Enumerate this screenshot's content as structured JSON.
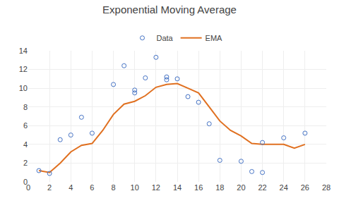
{
  "chart_data": {
    "type": "scatter",
    "title": "Exponential Moving Average",
    "series": [
      {
        "name": "Data",
        "type": "scatter",
        "marker": "circle-open",
        "color": "#4472c4",
        "x": [
          1,
          2,
          3,
          4,
          5,
          6,
          8,
          9,
          10,
          11,
          12,
          13,
          14,
          15,
          16,
          17,
          18,
          20,
          21,
          22,
          24,
          26,
          10,
          13,
          22
        ],
        "values": [
          1.2,
          0.9,
          4.5,
          5.0,
          6.9,
          5.2,
          10.4,
          12.4,
          9.8,
          11.1,
          13.3,
          11.2,
          11.0,
          9.1,
          8.5,
          6.2,
          2.3,
          2.2,
          1.1,
          4.2,
          4.7,
          5.2,
          9.5,
          10.9,
          1.0
        ]
      },
      {
        "name": "EMA",
        "type": "line",
        "line_style": "solid",
        "color": "#e07020",
        "x": [
          1,
          2,
          3,
          4,
          5,
          6,
          7,
          8,
          9,
          10,
          11,
          12,
          13,
          14,
          15,
          16,
          17,
          18,
          19,
          20,
          21,
          22,
          23,
          24,
          25,
          26
        ],
        "values": [
          1.2,
          1.0,
          2.0,
          3.2,
          3.9,
          4.1,
          5.5,
          7.2,
          8.3,
          8.6,
          9.2,
          10.1,
          10.4,
          10.5,
          10.0,
          9.5,
          8.0,
          6.5,
          5.5,
          4.9,
          4.1,
          4.0,
          4.0,
          4.0,
          3.6,
          4.0
        ]
      }
    ],
    "xlim": [
      0,
      28
    ],
    "xticks": [
      0,
      2,
      4,
      6,
      8,
      10,
      12,
      14,
      16,
      18,
      20,
      22,
      24,
      26,
      28
    ],
    "ylim": [
      0,
      14
    ],
    "yticks": [
      0,
      2,
      4,
      6,
      8,
      10,
      12,
      14
    ],
    "grid": true,
    "legend": "top"
  }
}
